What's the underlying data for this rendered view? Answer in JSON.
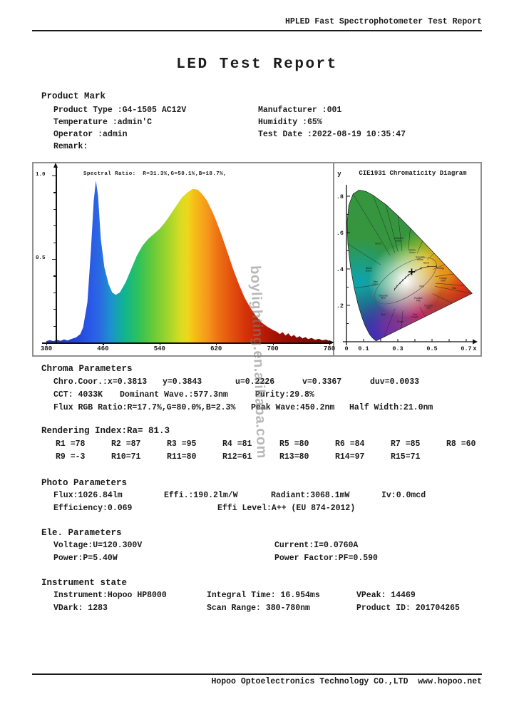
{
  "page": {
    "header_title": "HPLED Fast Spectrophotometer Test Report",
    "report_title": "LED Test Report",
    "watermark": "boylighting.en.alibaba.com",
    "footer_text": "Hopoo Optoelectronics Technology CO.,LTD  www.hopoo.net"
  },
  "product_mark": {
    "heading": "Product Mark",
    "rows": [
      {
        "left": "Product Type :G4-1505 AC12V",
        "right": "Manufacturer :001"
      },
      {
        "left": "Temperature :admin'C",
        "right": "Humidity :65%"
      },
      {
        "left": "Operator :admin",
        "right": "Test Date :2022-08-19 10:35:47"
      },
      {
        "left": "Remark:",
        "right": ""
      }
    ]
  },
  "chroma": {
    "heading": "Chroma Parameters",
    "row1": [
      "Chro.Coor.:x=0.3813",
      "y=0.3843",
      "u=0.2226",
      "v=0.3367",
      "duv=0.0033"
    ],
    "row2": [
      "CCT: 4033K",
      "Dominant Wave.:577.3nm",
      "Purity:29.8%"
    ],
    "row3": [
      "Flux RGB Ratio:R=17.7%,G=80.0%,B=2.3%",
      "Peak Wave:450.2nm",
      "Half Width:21.0nm"
    ]
  },
  "rendering": {
    "heading": "Rendering Index:Ra= 81.3",
    "values": [
      "R1 =78",
      "R2 =87",
      "R3 =95",
      "R4 =81",
      "R5 =80",
      "R6 =84",
      "R7 =85",
      "R8 =60",
      "R9 =-3",
      "R10=71",
      "R11=80",
      "R12=61",
      "R13=80",
      "R14=97",
      "R15=71"
    ]
  },
  "photo": {
    "heading": "Photo Parameters",
    "row1": [
      "Flux:1026.84lm",
      "Effi.:190.2lm/W",
      "Radiant:3068.1mW",
      "Iv:0.0mcd"
    ],
    "row2": [
      "Efficiency:0.069",
      "Effi Level:A++ (EU 874-2012)"
    ]
  },
  "ele": {
    "heading": "Ele. Parameters",
    "row1": [
      "Voltage:U=120.300V",
      "Current:I=0.0760A"
    ],
    "row2": [
      "Power:P=5.40W",
      "Power Factor:PF=0.590"
    ]
  },
  "instrument": {
    "heading": "Instrument state",
    "row1": [
      "Instrument:Hopoo HP8000",
      "Integral Time: 16.954ms",
      "VPeak: 14469"
    ],
    "row2": [
      "VDark: 1283",
      "Scan Range: 380-780nm",
      "Product ID: 201704265"
    ]
  },
  "chart_data": [
    {
      "type": "area",
      "title": "Spectral Ratio:  R=31.3%,G=50.1%,B=18.7%,",
      "xlim": [
        380,
        780
      ],
      "ylim": [
        0,
        1.05
      ],
      "x_ticks": [
        "380",
        "460",
        "540",
        "620",
        "700",
        "780"
      ],
      "y_ticks": [
        "1.0",
        "0.5"
      ],
      "y_tick_vals": [
        1.0,
        0.5
      ],
      "x": [
        380,
        385,
        390,
        395,
        400,
        405,
        410,
        416,
        422,
        428,
        432,
        438,
        443,
        447,
        450,
        453,
        457,
        462,
        468,
        473,
        478,
        484,
        492,
        500,
        508,
        516,
        524,
        532,
        540,
        548,
        556,
        564,
        572,
        580,
        587,
        594,
        600,
        607,
        614,
        620,
        628,
        636,
        644,
        652,
        660,
        668,
        676,
        684,
        692,
        700,
        706,
        710,
        714,
        718,
        722,
        726,
        730,
        734,
        738,
        742,
        746,
        750,
        755,
        760,
        765,
        770,
        775,
        780
      ],
      "y": [
        0.008,
        0.014,
        0.008,
        0.016,
        0.01,
        0.018,
        0.012,
        0.022,
        0.03,
        0.05,
        0.09,
        0.24,
        0.55,
        0.85,
        0.97,
        0.88,
        0.62,
        0.45,
        0.35,
        0.3,
        0.285,
        0.3,
        0.36,
        0.44,
        0.52,
        0.58,
        0.62,
        0.65,
        0.68,
        0.72,
        0.77,
        0.82,
        0.87,
        0.9,
        0.92,
        0.915,
        0.89,
        0.85,
        0.79,
        0.73,
        0.64,
        0.54,
        0.44,
        0.35,
        0.27,
        0.21,
        0.16,
        0.12,
        0.095,
        0.075,
        0.063,
        0.05,
        0.062,
        0.042,
        0.055,
        0.035,
        0.045,
        0.028,
        0.038,
        0.024,
        0.032,
        0.02,
        0.027,
        0.016,
        0.022,
        0.013,
        0.017,
        0.01
      ]
    },
    {
      "type": "scatter",
      "title": "CIE1931 Chromaticity Diagram",
      "xlabel": "x",
      "ylabel": "y",
      "x_ticks": [
        "0",
        "0.1",
        "0.3",
        "0.5",
        "0.7"
      ],
      "x_tick_vals": [
        0,
        0.1,
        0.3,
        0.5,
        0.7
      ],
      "y_ticks": [
        ".2",
        ".4",
        ".6",
        ".8"
      ],
      "y_tick_vals": [
        0.2,
        0.4,
        0.6,
        0.8
      ],
      "point": {
        "x": 0.3813,
        "y": 0.3843,
        "marker": "+"
      },
      "planckian": [
        [
          0.527,
          0.413
        ],
        [
          0.476,
          0.413
        ],
        [
          0.437,
          0.404
        ],
        [
          0.405,
          0.391
        ],
        [
          0.38,
          0.377
        ],
        [
          0.361,
          0.366
        ],
        [
          0.345,
          0.352
        ],
        [
          0.329,
          0.338
        ],
        [
          0.313,
          0.323
        ],
        [
          0.295,
          0.305
        ],
        [
          0.281,
          0.288
        ]
      ],
      "spectral_locus": [
        [
          0.1741,
          0.005
        ],
        [
          0.1726,
          0.0048
        ],
        [
          0.1644,
          0.0109
        ],
        [
          0.151,
          0.0227
        ],
        [
          0.1355,
          0.0399
        ],
        [
          0.1096,
          0.0868
        ],
        [
          0.0913,
          0.1327
        ],
        [
          0.0687,
          0.2007
        ],
        [
          0.0454,
          0.295
        ],
        [
          0.0235,
          0.4127
        ],
        [
          0.0082,
          0.5384
        ],
        [
          0.0039,
          0.6548
        ],
        [
          0.0139,
          0.7502
        ],
        [
          0.0389,
          0.812
        ],
        [
          0.0743,
          0.8338
        ],
        [
          0.1142,
          0.8262
        ],
        [
          0.1547,
          0.8059
        ],
        [
          0.2296,
          0.7543
        ],
        [
          0.3016,
          0.6923
        ],
        [
          0.3731,
          0.6245
        ],
        [
          0.4441,
          0.5547
        ],
        [
          0.5125,
          0.4866
        ],
        [
          0.5752,
          0.4242
        ],
        [
          0.627,
          0.3725
        ],
        [
          0.6658,
          0.334
        ],
        [
          0.6915,
          0.3083
        ],
        [
          0.714,
          0.2859
        ],
        [
          0.7347,
          0.2653
        ]
      ],
      "region_labels": [
        {
          "t": "Green",
          "x": 0.185,
          "y": 0.535
        },
        {
          "t": "Bluish Green",
          "x": 0.13,
          "y": 0.4
        },
        {
          "t": "Yellowish Green",
          "x": 0.305,
          "y": 0.565
        },
        {
          "t": "Yellow Green",
          "x": 0.385,
          "y": 0.5
        },
        {
          "t": "Greenish Yellow",
          "x": 0.43,
          "y": 0.46
        },
        {
          "t": "Yellow",
          "x": 0.465,
          "y": 0.43
        },
        {
          "t": "Orange",
          "x": 0.55,
          "y": 0.4
        },
        {
          "t": "Orange Pink",
          "x": 0.565,
          "y": 0.345
        },
        {
          "t": "Red",
          "x": 0.63,
          "y": 0.29
        },
        {
          "t": "Pink",
          "x": 0.44,
          "y": 0.3
        },
        {
          "t": "Purplish Pink",
          "x": 0.42,
          "y": 0.235
        },
        {
          "t": "Purplish Red",
          "x": 0.48,
          "y": 0.195
        },
        {
          "t": "Red Purple",
          "x": 0.4,
          "y": 0.145
        },
        {
          "t": "Purple",
          "x": 0.315,
          "y": 0.105
        },
        {
          "t": "Blue",
          "x": 0.215,
          "y": 0.145
        },
        {
          "t": "Greenish Blue",
          "x": 0.215,
          "y": 0.25
        },
        {
          "t": "Blue Green",
          "x": 0.17,
          "y": 0.325
        }
      ]
    }
  ]
}
